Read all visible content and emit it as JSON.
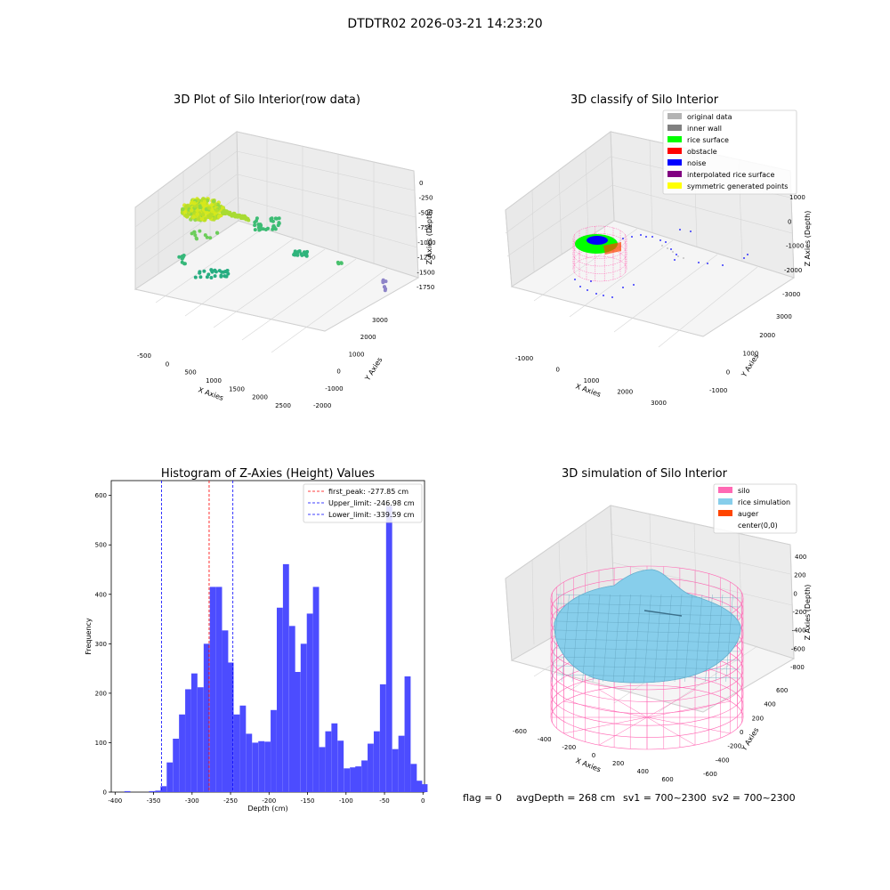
{
  "suptitle": "DTDTR02 2026-03-21 14:23:20",
  "status": {
    "flag": "flag = 0",
    "avg_depth": "avgDepth = 268 cm",
    "sv1": "sv1 = 700~2300",
    "sv2": "sv2 = 700~2300"
  },
  "colors": {
    "original_data": "#b3b3b3",
    "inner_wall": "#808080",
    "rice_surface": "#00ff00",
    "obstacle": "#ff0000",
    "noise": "#0000ff",
    "interpolated": "#800080",
    "symmetric": "#ffff00",
    "silo": "#ff69b4",
    "rice_sim": "#87ceeb",
    "auger": "#ff4500",
    "hist_bar": "#4c4cff"
  },
  "chart_data": [
    {
      "type": "scatter",
      "title": "3D Plot of Silo Interior(row data)",
      "xlabel": "X Axies",
      "ylabel": "Y Axies",
      "zlabel": "Z Axies (Depth)",
      "x_ticks": [
        "-500",
        "0",
        "500",
        "1000",
        "1500",
        "2000",
        "2500"
      ],
      "y_ticks": [
        "3000",
        "2000",
        "1000",
        "0",
        "-1000",
        "-2000"
      ],
      "z_ticks": [
        "0",
        "-250",
        "-500",
        "-750",
        "-1000",
        "-1250",
        "-1500",
        "-1750"
      ]
    },
    {
      "type": "scatter",
      "title": "3D classify of Silo Interior",
      "xlabel": "X Axies",
      "ylabel": "Y Axies",
      "zlabel": "Z Axies (Depth)",
      "x_ticks": [
        "-1000",
        "0",
        "1000",
        "2000",
        "3000"
      ],
      "y_ticks": [
        "3000",
        "2000",
        "1000",
        "0",
        "-1000"
      ],
      "z_ticks": [
        "1000",
        "0",
        "-1000",
        "-2000",
        "-3000"
      ],
      "legend": [
        "original data",
        "inner wall",
        "rice surface",
        "obstacle",
        "noise",
        "interpolated rice surface",
        "symmetric generated points"
      ]
    },
    {
      "type": "bar",
      "title": "Histogram of Z-Axies (Height) Values",
      "xlabel": "Depth (cm)",
      "ylabel": "Frequency",
      "xlim": [
        -405,
        2
      ],
      "ylim": [
        0,
        630
      ],
      "x_ticks": [
        -400,
        -350,
        -300,
        -250,
        -200,
        -150,
        -100,
        -50,
        0
      ],
      "y_ticks": [
        0,
        100,
        200,
        300,
        400,
        500,
        600
      ],
      "bin_width": 7.9,
      "bins": [
        {
          "x": -384,
          "v": 2
        },
        {
          "x": -352,
          "v": 2
        },
        {
          "x": -344,
          "v": 3
        },
        {
          "x": -337,
          "v": 12
        },
        {
          "x": -329,
          "v": 60
        },
        {
          "x": -321,
          "v": 108
        },
        {
          "x": -313,
          "v": 157
        },
        {
          "x": -305,
          "v": 208
        },
        {
          "x": -297,
          "v": 240
        },
        {
          "x": -289,
          "v": 212
        },
        {
          "x": -281,
          "v": 300
        },
        {
          "x": -273,
          "v": 415
        },
        {
          "x": -265,
          "v": 415
        },
        {
          "x": -257,
          "v": 327
        },
        {
          "x": -250,
          "v": 262
        },
        {
          "x": -242,
          "v": 157
        },
        {
          "x": -234,
          "v": 175
        },
        {
          "x": -226,
          "v": 118
        },
        {
          "x": -218,
          "v": 100
        },
        {
          "x": -210,
          "v": 103
        },
        {
          "x": -202,
          "v": 102
        },
        {
          "x": -194,
          "v": 166
        },
        {
          "x": -186,
          "v": 373
        },
        {
          "x": -178,
          "v": 461
        },
        {
          "x": -170,
          "v": 336
        },
        {
          "x": -163,
          "v": 243
        },
        {
          "x": -155,
          "v": 300
        },
        {
          "x": -147,
          "v": 361
        },
        {
          "x": -139,
          "v": 415
        },
        {
          "x": -131,
          "v": 91
        },
        {
          "x": -123,
          "v": 123
        },
        {
          "x": -115,
          "v": 139
        },
        {
          "x": -107,
          "v": 104
        },
        {
          "x": -99,
          "v": 48
        },
        {
          "x": -91,
          "v": 50
        },
        {
          "x": -84,
          "v": 52
        },
        {
          "x": -76,
          "v": 64
        },
        {
          "x": -68,
          "v": 98
        },
        {
          "x": -60,
          "v": 123
        },
        {
          "x": -52,
          "v": 218
        },
        {
          "x": -44,
          "v": 579
        },
        {
          "x": -36,
          "v": 87
        },
        {
          "x": -28,
          "v": 114
        },
        {
          "x": -20,
          "v": 234
        },
        {
          "x": -12,
          "v": 57
        },
        {
          "x": -5,
          "v": 23
        },
        {
          "x": 2,
          "v": 16
        }
      ],
      "vlines": [
        {
          "label": "first_peak: -277.85 cm",
          "x": -277.85,
          "color": "#ff0000"
        },
        {
          "label": "Upper_limit: -246.98 cm",
          "x": -246.98,
          "color": "#0000ff"
        },
        {
          "label": "Lower_limit: -339.59 cm",
          "x": -339.59,
          "color": "#0000ff"
        }
      ]
    },
    {
      "type": "surface",
      "title": "3D simulation of Silo Interior",
      "xlabel": "X Axies",
      "ylabel": "Y Axies",
      "zlabel": "Z Axies (Depth)",
      "x_ticks": [
        "-600",
        "-400",
        "-200",
        "0",
        "200",
        "400",
        "600"
      ],
      "y_ticks": [
        "600",
        "400",
        "200",
        "0",
        "-200",
        "-400",
        "-600"
      ],
      "z_ticks": [
        "400",
        "200",
        "0",
        "-200",
        "-400",
        "-600",
        "-800"
      ],
      "legend": [
        "silo",
        "rice simulation",
        "auger",
        "center(0,0)"
      ]
    }
  ]
}
